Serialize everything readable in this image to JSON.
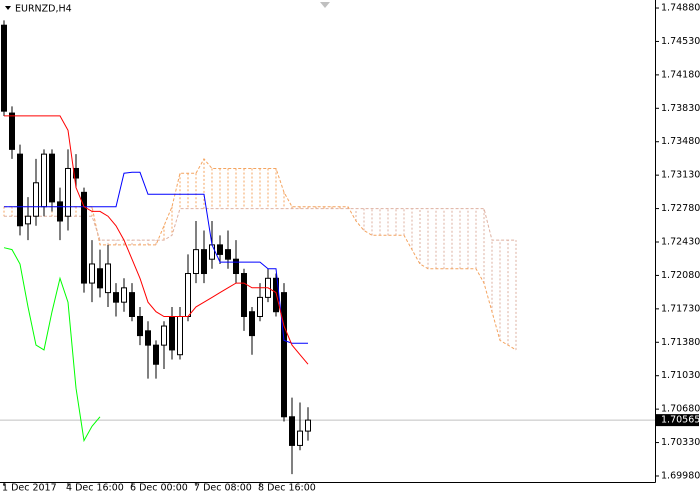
{
  "chart_data": {
    "type": "candlestick",
    "title": "EURNZD,H4",
    "ylim": [
      1.69917,
      1.74964
    ],
    "yticks": [
      {
        "value": 1.7488,
        "label": "1.74880"
      },
      {
        "value": 1.7453,
        "label": "1.74530"
      },
      {
        "value": 1.7418,
        "label": "1.74180"
      },
      {
        "value": 1.7383,
        "label": "1.73830"
      },
      {
        "value": 1.7348,
        "label": "1.73480"
      },
      {
        "value": 1.7313,
        "label": "1.73130"
      },
      {
        "value": 1.7278,
        "label": "1.72780"
      },
      {
        "value": 1.7243,
        "label": "1.72430"
      },
      {
        "value": 1.7208,
        "label": "1.72080"
      },
      {
        "value": 1.7173,
        "label": "1.71730"
      },
      {
        "value": 1.7138,
        "label": "1.71380"
      },
      {
        "value": 1.7103,
        "label": "1.71030"
      },
      {
        "value": 1.7068,
        "label": "1.70680"
      },
      {
        "value": 1.7033,
        "label": "1.70330"
      },
      {
        "value": 1.6998,
        "label": "1.69980"
      }
    ],
    "xlim": [
      -0.5,
      81.375
    ],
    "xticks": [
      {
        "value": 0,
        "label": "1 Dec 2017"
      },
      {
        "value": 8,
        "label": "4 Dec 16:00"
      },
      {
        "value": 16,
        "label": "6 Dec 00:00"
      },
      {
        "value": 24,
        "label": "7 Dec 08:00"
      },
      {
        "value": 32,
        "label": "8 Dec 16:00"
      }
    ],
    "current_price": {
      "value": 1.70565,
      "label": "1.70565"
    },
    "candles": {
      "up_color": "#ffffff",
      "down_color": "#000000",
      "edge_color": "#000000",
      "open": [
        1.747,
        1.7378,
        1.7335,
        1.7262,
        1.727,
        1.728,
        1.7335,
        1.7285,
        1.727,
        1.732,
        1.7295,
        1.72,
        1.7215,
        1.719,
        1.719,
        1.718,
        1.719,
        1.7165,
        1.715,
        1.7135,
        1.7135,
        1.7165,
        1.7125,
        1.7165,
        1.721,
        1.7235,
        1.7225,
        1.724,
        1.7235,
        1.7225,
        1.721,
        1.717,
        1.7165,
        1.7185,
        1.7205,
        1.719,
        1.706,
        1.703,
        1.7045
      ],
      "high": [
        1.7475,
        1.7385,
        1.7345,
        1.729,
        1.733,
        1.734,
        1.734,
        1.73,
        1.734,
        1.7335,
        1.73,
        1.7245,
        1.7235,
        1.724,
        1.72,
        1.7205,
        1.72,
        1.7175,
        1.716,
        1.714,
        1.716,
        1.7175,
        1.7175,
        1.723,
        1.7265,
        1.7255,
        1.7265,
        1.725,
        1.7255,
        1.7245,
        1.7215,
        1.7175,
        1.72,
        1.7215,
        1.721,
        1.72,
        1.708,
        1.7075,
        1.707
      ],
      "low": [
        1.7375,
        1.733,
        1.725,
        1.7245,
        1.726,
        1.727,
        1.7275,
        1.7245,
        1.7255,
        1.73,
        1.719,
        1.718,
        1.7185,
        1.7175,
        1.7165,
        1.717,
        1.716,
        1.7135,
        1.71,
        1.71,
        1.711,
        1.712,
        1.712,
        1.716,
        1.72,
        1.72,
        1.7215,
        1.722,
        1.7215,
        1.72,
        1.715,
        1.7125,
        1.716,
        1.718,
        1.7165,
        1.7055,
        1.7,
        1.7025,
        1.7035
      ],
      "close": [
        1.738,
        1.734,
        1.726,
        1.727,
        1.7305,
        1.7335,
        1.7285,
        1.7265,
        1.732,
        1.731,
        1.72,
        1.722,
        1.7195,
        1.722,
        1.718,
        1.7195,
        1.7165,
        1.7145,
        1.7135,
        1.7115,
        1.7155,
        1.713,
        1.7165,
        1.721,
        1.7235,
        1.721,
        1.724,
        1.723,
        1.7225,
        1.721,
        1.7165,
        1.7145,
        1.7185,
        1.7205,
        1.717,
        1.706,
        1.703,
        1.7045,
        1.70565
      ]
    },
    "tenkan": {
      "color": "#ff0000",
      "values": [
        1.7375,
        1.7375,
        1.7375,
        1.7375,
        1.7375,
        1.7375,
        1.7375,
        1.7375,
        1.736,
        1.73,
        1.728,
        1.7275,
        1.7275,
        1.727,
        1.726,
        1.7245,
        1.7225,
        1.7205,
        1.718,
        1.717,
        1.7165,
        1.7165,
        1.7165,
        1.7165,
        1.7175,
        1.718,
        1.7185,
        1.719,
        1.7195,
        1.72,
        1.72,
        1.7195,
        1.7195,
        1.7195,
        1.719,
        1.7155,
        1.7135,
        1.7125,
        1.7115
      ]
    },
    "kijun": {
      "color": "#0000ff",
      "values": [
        1.728,
        1.728,
        1.728,
        1.728,
        1.728,
        1.728,
        1.728,
        1.728,
        1.728,
        1.728,
        1.728,
        1.728,
        1.728,
        1.728,
        1.728,
        1.7315,
        1.7316,
        1.7316,
        1.7293,
        1.7293,
        1.7293,
        1.7293,
        1.7293,
        1.7293,
        1.7293,
        1.7293,
        1.724,
        1.7222,
        1.7222,
        1.7222,
        1.7222,
        1.7222,
        1.7222,
        1.7215,
        1.7215,
        1.714,
        1.7137,
        1.7137,
        1.7137
      ]
    },
    "chikou": {
      "color": "#00ff00",
      "values": [
        1.7237,
        1.7235,
        1.722,
        1.7175,
        1.7135,
        1.713,
        1.717,
        1.7205,
        1.718,
        1.709,
        1.7035,
        1.705,
        1.706
      ]
    },
    "senkou_a": {
      "color": "#f4a460",
      "values": [
        1.728,
        1.728,
        1.728,
        1.728,
        1.728,
        1.728,
        1.728,
        1.728,
        1.728,
        1.728,
        1.728,
        1.728,
        1.724,
        1.724,
        1.724,
        1.724,
        1.724,
        1.724,
        1.724,
        1.724,
        1.726,
        1.728,
        1.7315,
        1.7315,
        1.7315,
        1.733,
        1.732,
        1.732,
        1.732,
        1.732,
        1.732,
        1.732,
        1.732,
        1.732,
        1.732,
        1.7295,
        1.728,
        1.728,
        1.728,
        1.728,
        1.728,
        1.728,
        1.728,
        1.728,
        1.7265,
        1.7255,
        1.725,
        1.725,
        1.725,
        1.725,
        1.725,
        1.7235,
        1.722,
        1.7215,
        1.7215,
        1.7215,
        1.7215,
        1.7215,
        1.7215,
        1.7215,
        1.72,
        1.717,
        1.714,
        1.7135,
        1.713
      ]
    },
    "senkou_b": {
      "color": "#deb0a0",
      "values": [
        1.727,
        1.727,
        1.727,
        1.727,
        1.727,
        1.727,
        1.727,
        1.727,
        1.727,
        1.727,
        1.727,
        1.727,
        1.7245,
        1.7245,
        1.7245,
        1.7245,
        1.7245,
        1.7245,
        1.7245,
        1.7245,
        1.7245,
        1.725,
        1.7278,
        1.7278,
        1.7278,
        1.7278,
        1.7278,
        1.7278,
        1.7278,
        1.7278,
        1.7278,
        1.7278,
        1.7278,
        1.7278,
        1.7278,
        1.7278,
        1.7278,
        1.7278,
        1.7278,
        1.7278,
        1.7278,
        1.7278,
        1.7278,
        1.7278,
        1.7278,
        1.7278,
        1.7278,
        1.7278,
        1.7278,
        1.7278,
        1.7278,
        1.7278,
        1.7278,
        1.7278,
        1.7278,
        1.7278,
        1.7278,
        1.7278,
        1.7278,
        1.7278,
        1.7278,
        1.7245,
        1.7245,
        1.7245,
        1.7245
      ]
    }
  }
}
